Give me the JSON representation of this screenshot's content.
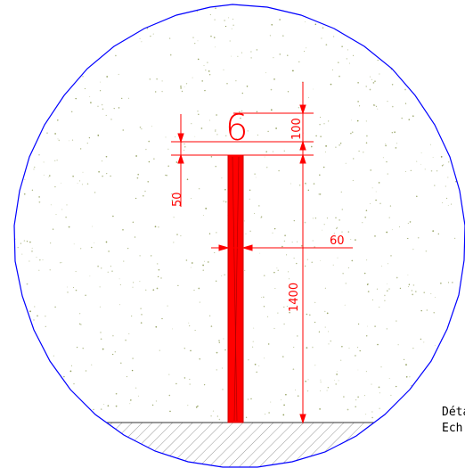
{
  "detail": {
    "mark_label": "6",
    "dimensions": {
      "top_overhang": "100",
      "cap_depth": "50",
      "post_width": "60",
      "post_height": "1400"
    },
    "caption": {
      "line1": "Déta",
      "line2": "Ech"
    },
    "colors": {
      "frame": "#0000ff",
      "dimension": "#ff0000",
      "fill_speckle": "#7a8a3a",
      "ground_hatch": "#999999"
    }
  }
}
